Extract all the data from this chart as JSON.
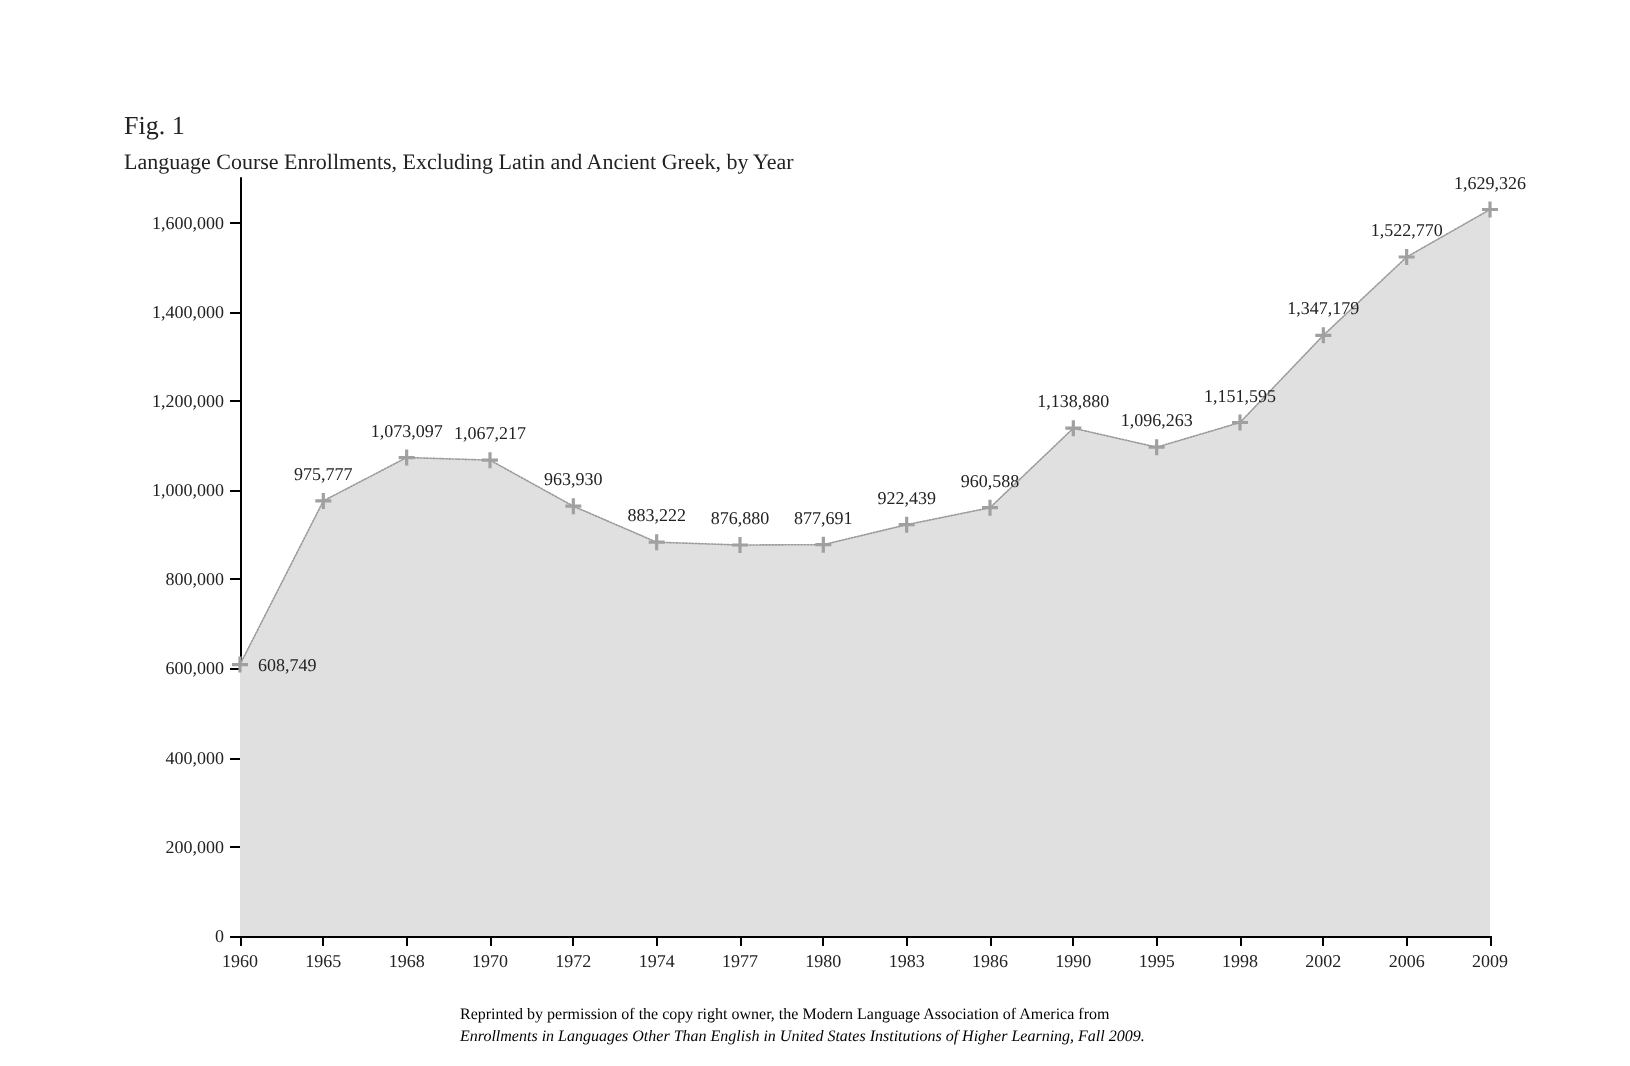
{
  "chart_data": {
    "type": "area",
    "title": "Fig. 1",
    "subtitle": "Language Course Enrollments, Excluding Latin and Ancient Greek, by Year",
    "categories": [
      "1960",
      "1965",
      "1968",
      "1970",
      "1972",
      "1974",
      "1977",
      "1980",
      "1983",
      "1986",
      "1990",
      "1995",
      "1998",
      "2002",
      "2006",
      "2009"
    ],
    "series": [
      {
        "color": "#e0e0e0",
        "values": [
          608749,
          975777,
          1073097,
          1067217,
          963930,
          883222,
          876880,
          877691,
          922439,
          960588,
          1138880,
          1096263,
          1151595,
          1347179,
          1522770,
          1629326
        ],
        "value_labels": [
          "608,749",
          "975,777",
          "1,073,097",
          "1,067,217",
          "963,930",
          "883,222",
          "876,880",
          "877,691",
          "922,439",
          "960,588",
          "1,138,880",
          "1,096,263",
          "1,151,595",
          "1,347,179",
          "1,522,770",
          "1,629,326"
        ]
      }
    ],
    "ylim": [
      0,
      1700000
    ],
    "yticks": [
      0,
      {
        "value": 200000,
        "label": "200,000"
      },
      {
        "value": 400000,
        "label": "400,000"
      },
      {
        "value": 600000,
        "label": "600,000"
      },
      {
        "value": 800000,
        "label": "800,000"
      },
      {
        "value": 1000000,
        "label": "1,000,000"
      },
      {
        "value": 1200000,
        "label": "1,200,000"
      },
      {
        "value": 1400000,
        "label": "1,400,000"
      },
      {
        "value": 1600000,
        "label": "1,600,000"
      }
    ],
    "grid": false,
    "marker": "cross",
    "line_style": "dotted",
    "annotations": [
      "Reprinted by permission of the copy right owner, the Modern Language Association of America from",
      "Enrollments in Languages Other Than English in United States Institutions of Higher Learning, Fall 2009."
    ]
  }
}
